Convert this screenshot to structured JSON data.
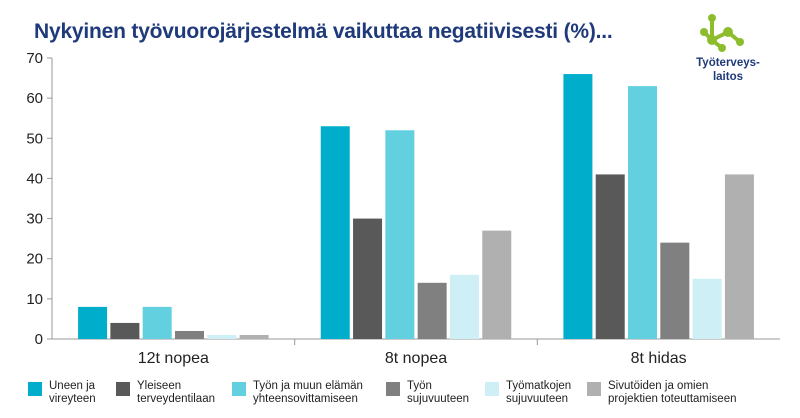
{
  "logo": {
    "text": "Työterveys-\nlaitos",
    "color": "#8dbd2c"
  },
  "chart_data": {
    "type": "bar",
    "title": "Nykyinen työvuorojärjestelmä vaikuttaa negatiivisesti (%)...",
    "xlabel": "",
    "ylabel": "",
    "ylim": [
      0,
      70
    ],
    "yticks": [
      0,
      10,
      20,
      30,
      40,
      50,
      60,
      70
    ],
    "grid": false,
    "legend_position": "bottom",
    "categories": [
      "12t nopea",
      "8t nopea",
      "8t hidas"
    ],
    "series": [
      {
        "name": "Uneen ja\nvireyteen",
        "color": "#00aecb",
        "values": [
          8,
          53,
          66
        ]
      },
      {
        "name": "Yleiseen\nterveydentilaan",
        "color": "#595959",
        "values": [
          4,
          30,
          41
        ]
      },
      {
        "name": "Työn ja muun elämän\nyhteensovittamiseen",
        "color": "#63d0df",
        "values": [
          8,
          52,
          63
        ]
      },
      {
        "name": "Työn\nsujuvuuteen",
        "color": "#808080",
        "values": [
          2,
          14,
          24
        ]
      },
      {
        "name": "Työmatkojen\nsujuvuuteen",
        "color": "#cdeff5",
        "values": [
          1,
          16,
          15
        ]
      },
      {
        "name": "Sivutöiden ja omien\nprojektien toteuttamiseen",
        "color": "#b0b0b0",
        "values": [
          1,
          27,
          41
        ]
      }
    ]
  }
}
